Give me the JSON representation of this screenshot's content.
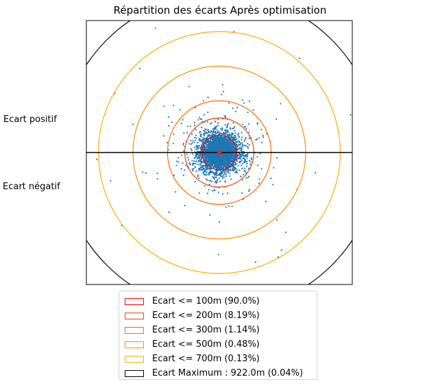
{
  "chart_data": {
    "type": "scatter",
    "title": "Répartition des écarts Après optimisation",
    "side_labels": {
      "positive": "Ecart positif",
      "negative": "Ecart négatif"
    },
    "colors": {
      "points": "#1f77b4",
      "center": "#d62728",
      "axis_line": "#000000"
    },
    "rings": [
      {
        "label": "Ecart <= 100m (90.0%)",
        "radius_m": 100,
        "color": "#ff0000"
      },
      {
        "label": "Ecart <= 200m (8.19%)",
        "radius_m": 200,
        "color": "#ff3a00"
      },
      {
        "label": "Ecart <= 300m (1.14%)",
        "radius_m": 300,
        "color": "#ff6a00"
      },
      {
        "label": "Ecart <= 500m (0.48%)",
        "radius_m": 500,
        "color": "#ff8c00"
      },
      {
        "label": "Ecart <= 700m (0.13%)",
        "radius_m": 700,
        "color": "#ffaa00"
      },
      {
        "label": "Ecart Maximum : 922.0m (0.04%)",
        "radius_m": 922,
        "color": "#000000"
      }
    ],
    "xlim": [
      -770,
      770
    ],
    "ylim": [
      -770,
      770
    ],
    "horizontal_line_y": 0,
    "outliers": [
      [
        -370,
        725
      ],
      [
        85,
        705
      ],
      [
        465,
        550
      ],
      [
        -460,
        490
      ],
      [
        -175,
        385
      ],
      [
        -605,
        345
      ],
      [
        20,
        395
      ],
      [
        -320,
        270
      ],
      [
        760,
        220
      ],
      [
        -500,
        165
      ],
      [
        355,
        285
      ],
      [
        330,
        195
      ],
      [
        -710,
        -40
      ],
      [
        -425,
        -120
      ],
      [
        -445,
        -115
      ],
      [
        -630,
        -165
      ],
      [
        450,
        -215
      ],
      [
        -565,
        -425
      ],
      [
        385,
        -465
      ],
      [
        0,
        -405
      ],
      [
        -5,
        -595
      ],
      [
        360,
        -570
      ],
      [
        210,
        -640
      ],
      [
        340,
        -610
      ],
      [
        -200,
        -310
      ],
      [
        230,
        -180
      ],
      [
        -220,
        170
      ],
      [
        270,
        -285
      ],
      [
        -265,
        275
      ],
      [
        175,
        300
      ]
    ],
    "cluster": {
      "count": 3200,
      "sigma_m": 55,
      "outer_count": 360,
      "outer_sigma_m": 130
    }
  }
}
